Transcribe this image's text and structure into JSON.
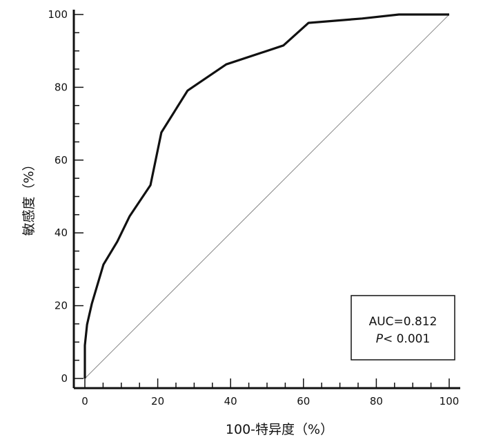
{
  "chart_data": {
    "type": "line",
    "title": "",
    "xlabel": "100-特异度（%）",
    "ylabel": "敏感度（%）",
    "xlim": [
      0,
      100
    ],
    "ylim": [
      0,
      100
    ],
    "xticks": [
      "0",
      "20",
      "40",
      "60",
      "80",
      "100"
    ],
    "yticks": [
      "0",
      "20",
      "40",
      "60",
      "80",
      "100"
    ],
    "grid": false,
    "series": [
      {
        "x": [
          0,
          0,
          0.6,
          1.9,
          5.1,
          8.9,
          12.3,
          18,
          21,
          28.2,
          38.8,
          54.5,
          61.4,
          76.1,
          86.2,
          100
        ],
        "y": [
          0,
          9.1,
          14.8,
          20.5,
          31.3,
          37.6,
          44.6,
          53.1,
          67.6,
          79.1,
          86.3,
          91.5,
          97.7,
          98.9,
          100,
          100
        ],
        "color": "#111111"
      }
    ],
    "reference_line": {
      "x": [
        0,
        100
      ],
      "y": [
        0,
        100
      ],
      "color": "#888888"
    },
    "annotation": {
      "auc": "AUC=0.812",
      "p_label": "P",
      "p_value": "< 0.001"
    }
  }
}
